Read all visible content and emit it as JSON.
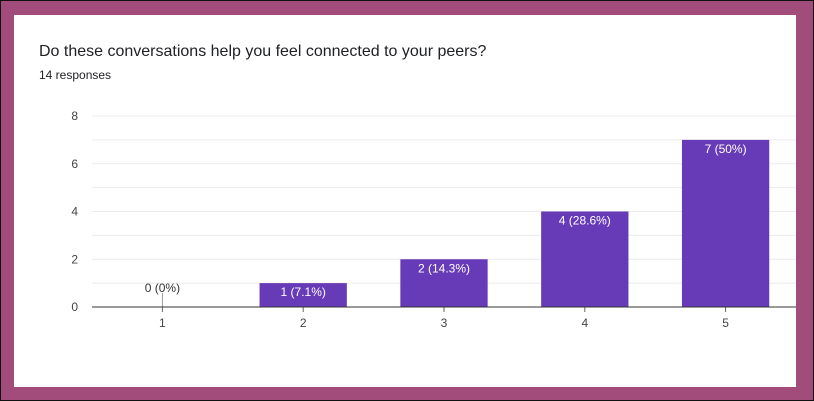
{
  "question": "Do these conversations help you feel connected to your peers?",
  "responses": "14 responses",
  "colors": {
    "bar": "#673ab7",
    "grid": "#ebebeb",
    "axis": "#333333"
  },
  "chart_data": {
    "type": "bar",
    "title": "Do these conversations help you feel connected to your peers?",
    "subtitle": "14 responses",
    "categories": [
      "1",
      "2",
      "3",
      "4",
      "5"
    ],
    "values": [
      0,
      1,
      2,
      4,
      7
    ],
    "data_labels": [
      "0 (0%)",
      "1 (7.1%)",
      "2 (14.3%)",
      "4 (28.6%)",
      "7 (50%)"
    ],
    "ylim": [
      0,
      8
    ],
    "yticks": [
      "0",
      "2",
      "4",
      "6",
      "8"
    ],
    "grid": true,
    "legend": "none"
  }
}
